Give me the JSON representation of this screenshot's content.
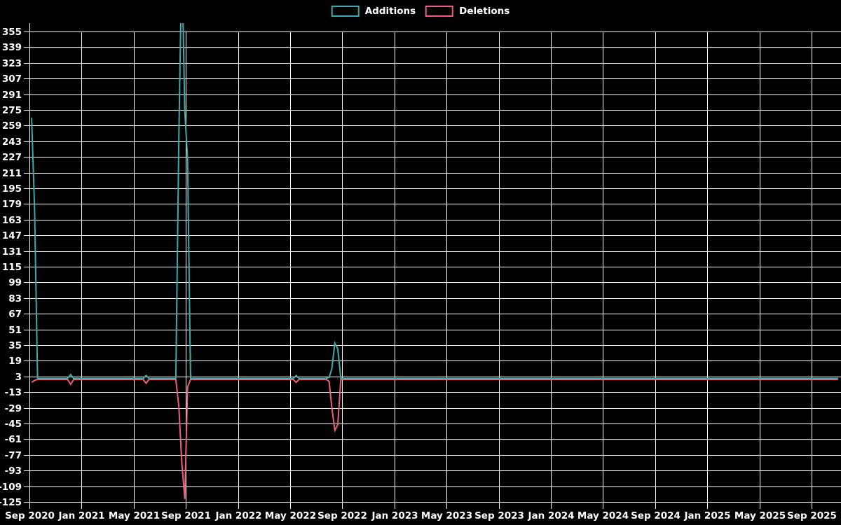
{
  "chart_data": {
    "type": "line",
    "title": "",
    "background_color": "#000000",
    "gridline_color": "#ffffff",
    "text_color": "#ffffff",
    "legend": {
      "position": "top-center",
      "items": [
        {
          "label": "Additions",
          "color": "#3daaad"
        },
        {
          "label": "Deletions",
          "color": "#f05f78"
        }
      ]
    },
    "x_axis": {
      "label": "",
      "start": "2020-09",
      "end": "2025-11",
      "gridline_interval_months": 4,
      "tick_labels": [
        "Sep 2020",
        "Jan 2021",
        "May 2021",
        "Sep 2021",
        "Jan 2022",
        "May 2022",
        "Sep 2022",
        "Jan 2023",
        "May 2023",
        "Sep 2023",
        "Jan 2024",
        "May 2024",
        "Sep 2024",
        "Jan 2025",
        "May 2025",
        "Sep 2025"
      ]
    },
    "y_axis": {
      "label": "",
      "min": -125,
      "max": 355,
      "tick_step": 16,
      "tick_labels": [
        355,
        339,
        323,
        307,
        291,
        275,
        259,
        243,
        227,
        211,
        195,
        179,
        163,
        147,
        131,
        115,
        99,
        83,
        67,
        51,
        35,
        19,
        3,
        -13,
        -29,
        -45,
        -61,
        -77,
        -93,
        -109,
        -125
      ],
      "grid": true,
      "note": "spike peaks near Sep 2021 exceed the axis range and are clipped at plot edges"
    },
    "series": [
      {
        "name": "Additions",
        "color": "#3daaad",
        "points": [
          [
            "2020-09-06",
            267
          ],
          [
            "2020-09-13",
            175
          ],
          [
            "2020-09-20",
            1
          ],
          [
            "2020-11-29",
            1
          ],
          [
            "2020-12-06",
            5
          ],
          [
            "2020-12-13",
            1
          ],
          [
            "2021-05-23",
            1
          ],
          [
            "2021-05-30",
            4
          ],
          [
            "2021-06-06",
            1
          ],
          [
            "2021-08-08",
            1
          ],
          [
            "2021-08-15",
            247
          ],
          [
            "2021-08-22",
            430
          ],
          [
            "2021-08-29",
            273
          ],
          [
            "2021-09-05",
            226
          ],
          [
            "2021-09-12",
            1
          ],
          [
            "2022-05-08",
            1
          ],
          [
            "2022-05-15",
            4
          ],
          [
            "2022-05-22",
            1
          ],
          [
            "2022-07-24",
            1
          ],
          [
            "2022-07-31",
            2
          ],
          [
            "2022-08-07",
            11
          ],
          [
            "2022-08-14",
            37
          ],
          [
            "2022-08-21",
            31
          ],
          [
            "2022-08-28",
            1
          ],
          [
            "2025-11-02",
            1
          ]
        ]
      },
      {
        "name": "Deletions",
        "color": "#f05f78",
        "points": [
          [
            "2020-09-06",
            -3
          ],
          [
            "2020-09-13",
            -1
          ],
          [
            "2020-09-20",
            0
          ],
          [
            "2020-11-29",
            0
          ],
          [
            "2020-12-06",
            -5
          ],
          [
            "2020-12-13",
            0
          ],
          [
            "2021-05-23",
            0
          ],
          [
            "2021-05-30",
            -4
          ],
          [
            "2021-06-06",
            0
          ],
          [
            "2021-08-08",
            0
          ],
          [
            "2021-08-15",
            -28
          ],
          [
            "2021-08-22",
            -85
          ],
          [
            "2021-08-29",
            -122
          ],
          [
            "2021-09-05",
            -8
          ],
          [
            "2021-09-12",
            0
          ],
          [
            "2022-05-08",
            0
          ],
          [
            "2022-05-15",
            -3
          ],
          [
            "2022-05-22",
            0
          ],
          [
            "2022-07-24",
            0
          ],
          [
            "2022-07-31",
            -2
          ],
          [
            "2022-08-07",
            -29
          ],
          [
            "2022-08-14",
            -52
          ],
          [
            "2022-08-21",
            -46
          ],
          [
            "2022-08-28",
            0
          ],
          [
            "2025-11-02",
            0
          ]
        ]
      }
    ]
  }
}
